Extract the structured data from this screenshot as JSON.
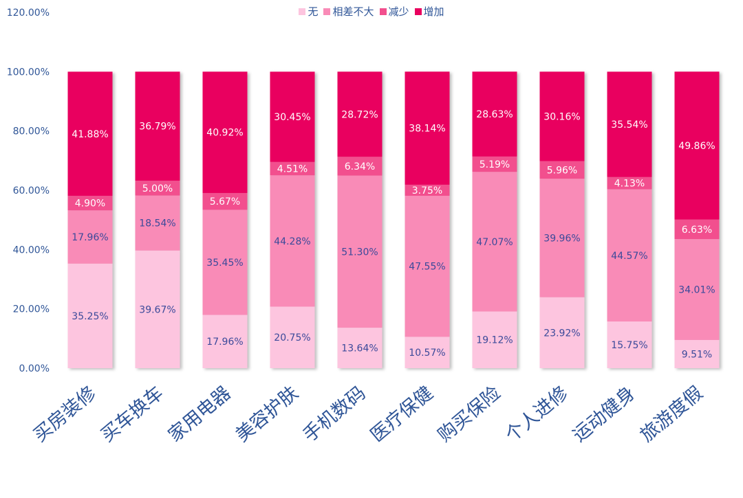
{
  "colors": {
    "none": "#fdc5df",
    "similar": "#f98bb7",
    "decrease": "#f24f8e",
    "increase": "#e9005e",
    "axis_text": "#2f5597",
    "label_dark": "#3b4a9a",
    "label_light": "#ffffff"
  },
  "chart_data": {
    "type": "bar",
    "stacked": true,
    "y_tick_labels": [
      "0.00%",
      "20.00%",
      "40.00%",
      "60.00%",
      "80.00%",
      "100.00%",
      "120.00%"
    ],
    "ylim": [
      0,
      120
    ],
    "grid": false,
    "legend_position": "top",
    "categories": [
      "买房装修",
      "买车换车",
      "家用电器",
      "美容护肤",
      "手机数码",
      "医疗保健",
      "购买保险",
      "个人进修",
      "运动健身",
      "旅游度假"
    ],
    "series": [
      {
        "name": "无",
        "color": "#fdc5df",
        "values": [
          35.25,
          39.67,
          17.96,
          20.75,
          13.64,
          10.57,
          19.12,
          23.92,
          15.75,
          9.51
        ],
        "labels": [
          "35.25%",
          "39.67%",
          "17.96%",
          "20.75%",
          "13.64%",
          "10.57%",
          "19.12%",
          "23.92%",
          "15.75%",
          "9.51%"
        ]
      },
      {
        "name": "相差不大",
        "color": "#f98bb7",
        "values": [
          17.96,
          18.54,
          35.45,
          44.28,
          51.3,
          47.55,
          47.07,
          39.96,
          44.57,
          34.01
        ],
        "labels": [
          "17.96%",
          "18.54%",
          "35.45%",
          "44.28%",
          "51.30%",
          "47.55%",
          "47.07%",
          "39.96%",
          "44.57%",
          "34.01%"
        ]
      },
      {
        "name": "减少",
        "color": "#f24f8e",
        "values": [
          4.9,
          5.0,
          5.67,
          4.51,
          6.34,
          3.75,
          5.19,
          5.96,
          4.13,
          6.63
        ],
        "labels": [
          "4.90%",
          "5.00%",
          "5.67%",
          "4.51%",
          "6.34%",
          "3.75%",
          "5.19%",
          "5.96%",
          "4.13%",
          "6.63%"
        ]
      },
      {
        "name": "增加",
        "color": "#e9005e",
        "values": [
          41.88,
          36.79,
          40.92,
          30.45,
          28.72,
          38.14,
          28.63,
          30.16,
          35.54,
          49.86
        ],
        "labels": [
          "41.88%",
          "36.79%",
          "40.92%",
          "30.45%",
          "28.72%",
          "38.14%",
          "28.63%",
          "30.16%",
          "35.54%",
          "49.86%"
        ]
      }
    ]
  }
}
